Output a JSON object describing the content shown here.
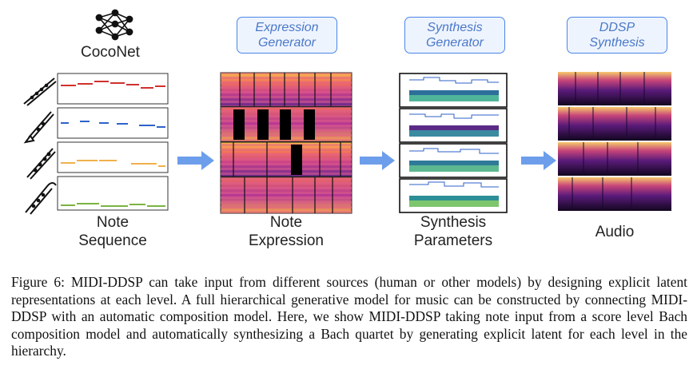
{
  "stages": {
    "coconet_label": "CocoNet",
    "expression_generator": [
      "Expression",
      "Generator"
    ],
    "synthesis_generator": [
      "Synthesis",
      "Generator"
    ],
    "ddsp_synthesis": [
      "DDSP",
      "Synthesis"
    ]
  },
  "labels": {
    "note_sequence": [
      "Note",
      "Sequence"
    ],
    "note_expression": [
      "Note",
      "Expression"
    ],
    "synthesis_parameters": [
      "Synthesis",
      "Parameters"
    ],
    "audio": "Audio"
  },
  "instruments": [
    "flute-icon",
    "clarinet-icon",
    "oboe-icon",
    "bassoon-icon"
  ],
  "colors": {
    "accent": "#4a86e8",
    "arrow": "#6d9eeb",
    "tracks": [
      "#d0312d",
      "#2e62c9",
      "#f1b04c",
      "#7cb342"
    ]
  },
  "caption": "Figure 6: MIDI-DDSP can take input from different sources (human or other models) by designing explicit latent representations at each level. A full hierarchical generative model for music can be constructed by connecting MIDI-DDSP with an automatic composition model. Here, we show MIDI-DDSP taking note input from a score level Bach composition model and automatically synthesizing a Bach quartet by generating explicit latent for each level in the hierarchy."
}
